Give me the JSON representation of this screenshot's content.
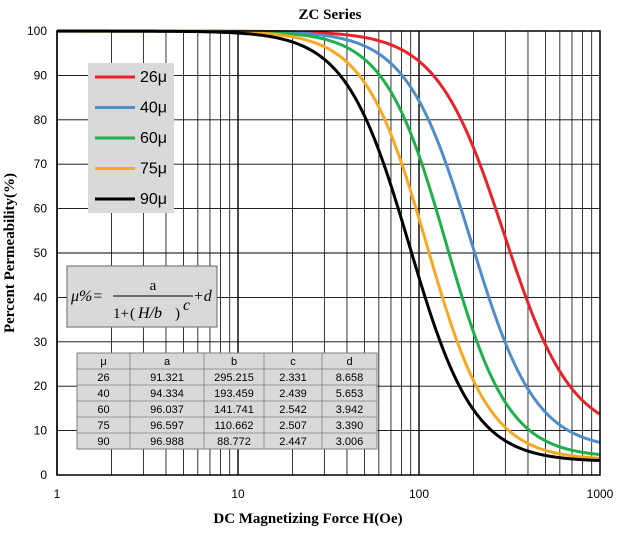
{
  "chart_data": {
    "type": "line",
    "title": "ZC Series",
    "xlabel": "DC Magnetizing Force H(Oe)",
    "ylabel": "Percent Permeability(%)",
    "xscale": "log",
    "xlim": [
      1,
      1000
    ],
    "ylim": [
      0,
      100
    ],
    "xticks": [
      1,
      10,
      100,
      1000
    ],
    "xtick_labels": [
      "1",
      "10",
      "100",
      "1000"
    ],
    "yticks": [
      0,
      10,
      20,
      30,
      40,
      50,
      60,
      70,
      80,
      90,
      100
    ],
    "ytick_labels": [
      "0",
      "10",
      "20",
      "30",
      "40",
      "50",
      "60",
      "70",
      "80",
      "90",
      "100"
    ],
    "grid": true,
    "legend_position": "top-left",
    "series": [
      {
        "name": "26μ",
        "color": "#e8232a",
        "a": 91.321,
        "b": 295.215,
        "c": 2.331,
        "d": 8.658
      },
      {
        "name": "40μ",
        "color": "#4f8dc9",
        "a": 94.334,
        "b": 193.459,
        "c": 2.439,
        "d": 5.653
      },
      {
        "name": "60μ",
        "color": "#1fb04b",
        "a": 96.037,
        "b": 141.741,
        "c": 2.542,
        "d": 3.942
      },
      {
        "name": "75μ",
        "color": "#f7a823",
        "a": 96.597,
        "b": 110.662,
        "c": 2.507,
        "d": 3.39
      },
      {
        "name": "90μ",
        "color": "#000000",
        "a": 96.988,
        "b": 88.772,
        "c": 2.447,
        "d": 3.006
      }
    ],
    "formula": {
      "lhs": "μ%=",
      "numerator": "a",
      "denominator_left": "1+",
      "denominator_inner": "H/b",
      "exponent": "c",
      "tail": "+d"
    },
    "table": {
      "headers": [
        "μ",
        "a",
        "b",
        "c",
        "d"
      ],
      "rows": [
        [
          "26",
          "91.321",
          "295.215",
          "2.331",
          "8.658"
        ],
        [
          "40",
          "94.334",
          "193.459",
          "2.439",
          "5.653"
        ],
        [
          "60",
          "96.037",
          "141.741",
          "2.542",
          "3.942"
        ],
        [
          "75",
          "96.597",
          "110.662",
          "2.507",
          "3.390"
        ],
        [
          "90",
          "96.988",
          "88.772",
          "2.447",
          "3.006"
        ]
      ]
    }
  }
}
